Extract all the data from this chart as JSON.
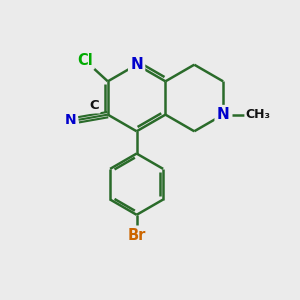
{
  "bg_color": "#ebebeb",
  "bond_color": "#2a6b2a",
  "bond_width": 1.8,
  "atom_colors": {
    "N": "#0000cc",
    "Cl": "#00aa00",
    "Br": "#cc6600",
    "C": "#111111"
  },
  "figsize": [
    3.0,
    3.0
  ],
  "dpi": 100
}
